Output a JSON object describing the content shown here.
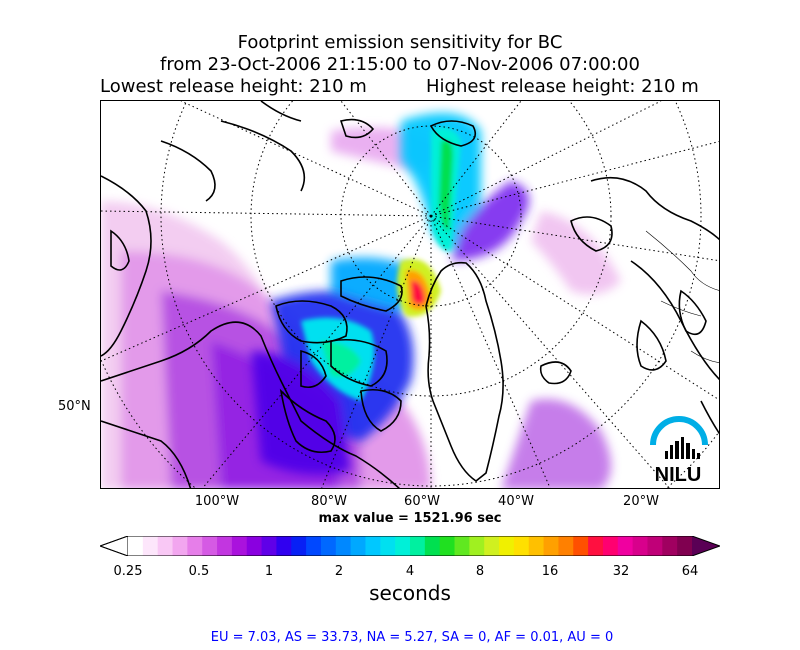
{
  "title": {
    "line1": "Footprint emission sensitivity for BC",
    "line2": "from 23-Oct-2006 21:15:00 to 07-Nov-2006 07:00:00",
    "lowest_release": "Lowest release height: 210 m",
    "highest_release": "Highest release height: 210 m"
  },
  "map": {
    "lon_labels": [
      "100°W",
      "80°W",
      "60°W",
      "40°W",
      "20°W"
    ],
    "lat_label": "50°N",
    "logo_text": "NILU",
    "logo_color": "#00aee6"
  },
  "max_value": "max value = 1521.96 sec",
  "colorbar": {
    "ticks": [
      "0.25",
      "0.5",
      "1",
      "2",
      "4",
      "8",
      "16",
      "32",
      "64"
    ],
    "units": "seconds",
    "colors": [
      "#ffffff",
      "#fde6fb",
      "#f9c8f5",
      "#f2a6ef",
      "#e67ee9",
      "#d55ae4",
      "#c236e0",
      "#aa12dd",
      "#8a00e0",
      "#6000e8",
      "#3000f0",
      "#0820f5",
      "#0048ff",
      "#0068ff",
      "#0088ff",
      "#00a8ff",
      "#00c8ff",
      "#00e0f0",
      "#00f0d8",
      "#00f0a0",
      "#00e050",
      "#20e020",
      "#60e820",
      "#a0f020",
      "#d0f020",
      "#f0f000",
      "#ffe000",
      "#ffc000",
      "#ffa000",
      "#ff8000",
      "#ff5000",
      "#ff1040",
      "#ff0070",
      "#f000a0",
      "#d8008c",
      "#c00078",
      "#a00060",
      "#800050"
    ],
    "start_color": "#ffffff",
    "end_color": "#5a0055"
  },
  "regions": "EU = 7.03,  AS = 33.73,  NA = 5.27,  SA = 0,  AF = 0.01,  AU = 0"
}
